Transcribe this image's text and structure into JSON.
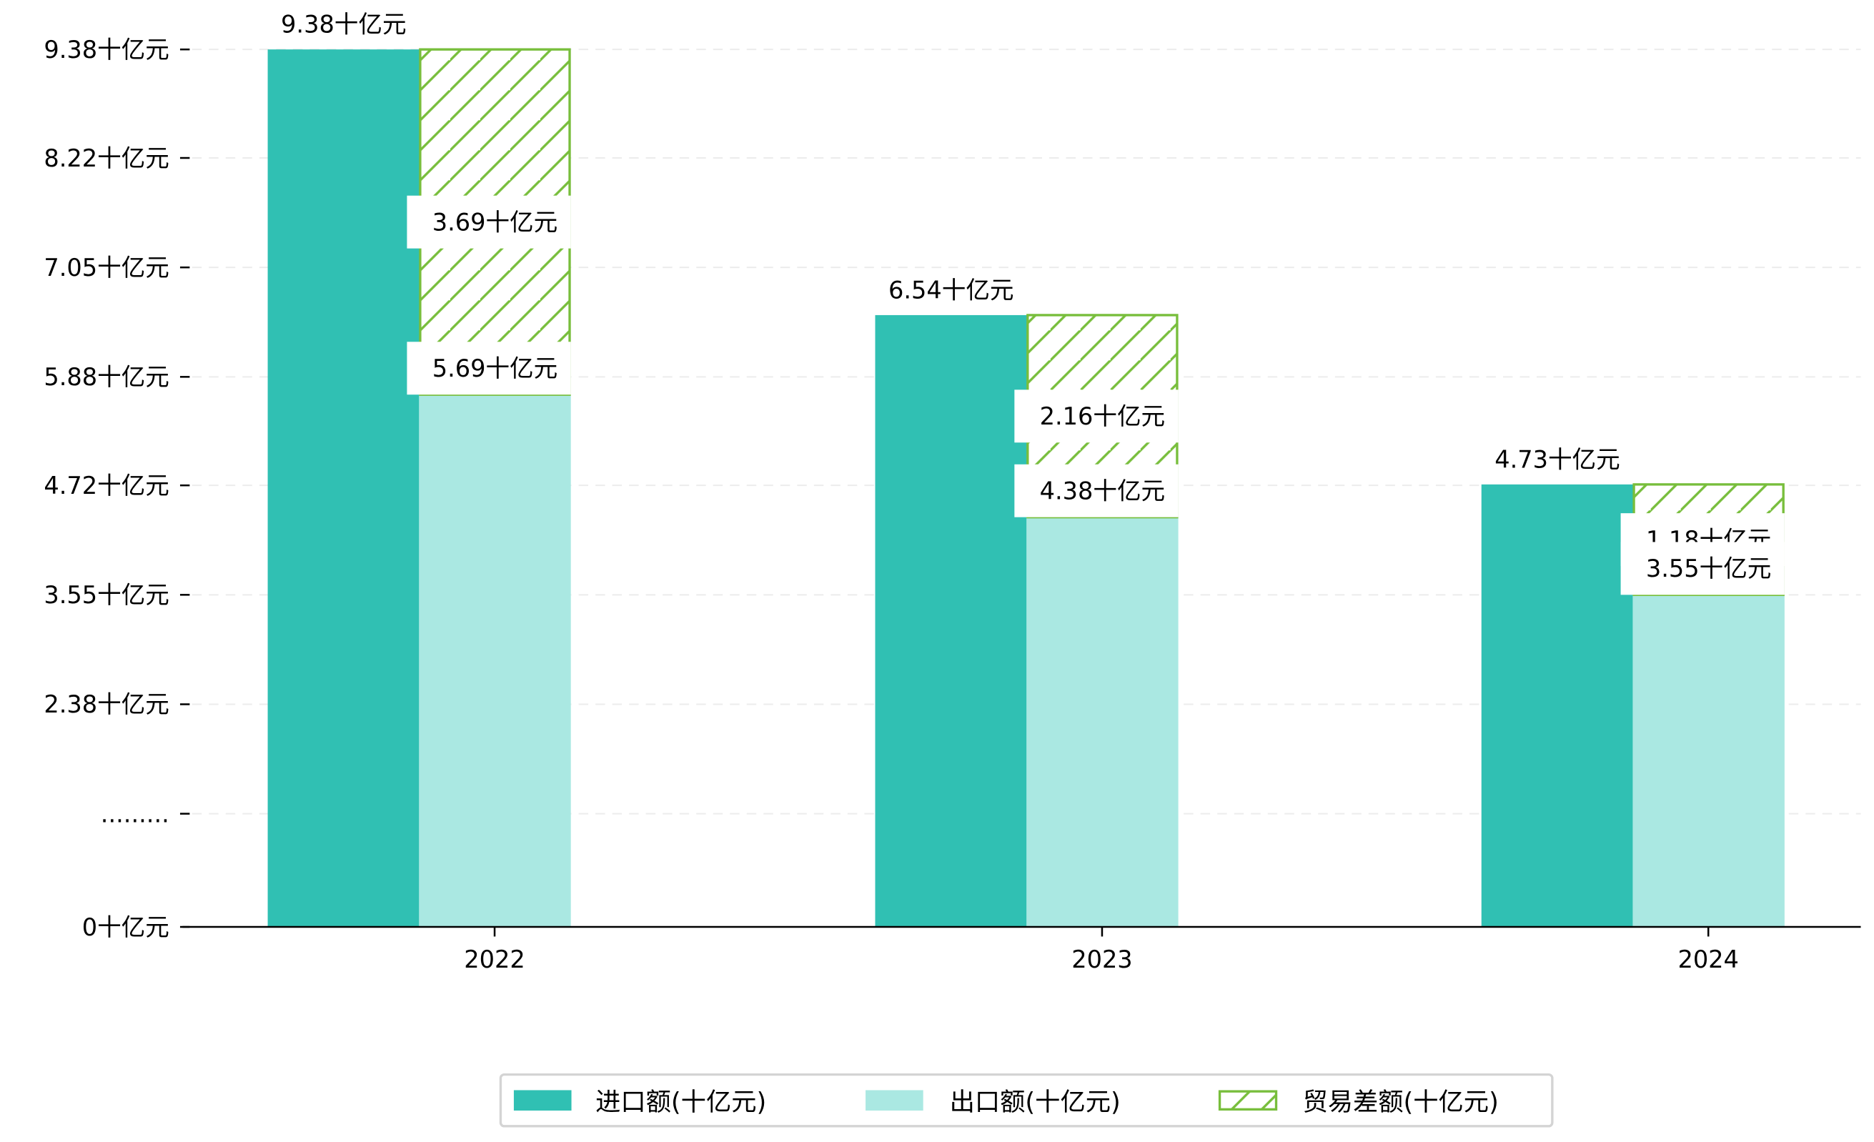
{
  "chart_data": {
    "type": "bar",
    "subtype": "grouped-with-stacked-difference",
    "categories": [
      "2022",
      "2023",
      "2024"
    ],
    "series": [
      {
        "name": "进口额(十亿元)",
        "values": [
          9.38,
          6.54,
          4.73
        ],
        "labels": [
          "9.38十亿元",
          "6.54十亿元",
          "4.73十亿元"
        ],
        "color": "#30c0b3"
      },
      {
        "name": "出口额(十亿元)",
        "values": [
          5.69,
          4.38,
          3.55
        ],
        "labels": [
          "5.69十亿元",
          "4.38十亿元",
          "3.55十亿元"
        ],
        "color": "#aae8e2"
      },
      {
        "name": "贸易差额(十亿元)",
        "values": [
          3.69,
          2.16,
          1.18
        ],
        "labels": [
          "3.69十亿元",
          "2.16十亿元",
          "1.18十亿元"
        ],
        "color": "#78be3c",
        "hatch": "/"
      }
    ],
    "yticks": [
      0,
      1.21,
      2.38,
      3.55,
      4.72,
      5.88,
      7.05,
      8.22,
      9.38
    ],
    "ytick_labels": [
      "0十亿元",
      ".........",
      "2.38十亿元",
      "3.55十亿元",
      "4.72十亿元",
      "5.88十亿元",
      "7.05十亿元",
      "8.22十亿元",
      "9.38十亿元"
    ],
    "ylim": [
      0,
      9.38
    ],
    "grid": "horizontal dashed",
    "legend_position": "bottom-center",
    "title": "",
    "xlabel": "",
    "ylabel": ""
  }
}
